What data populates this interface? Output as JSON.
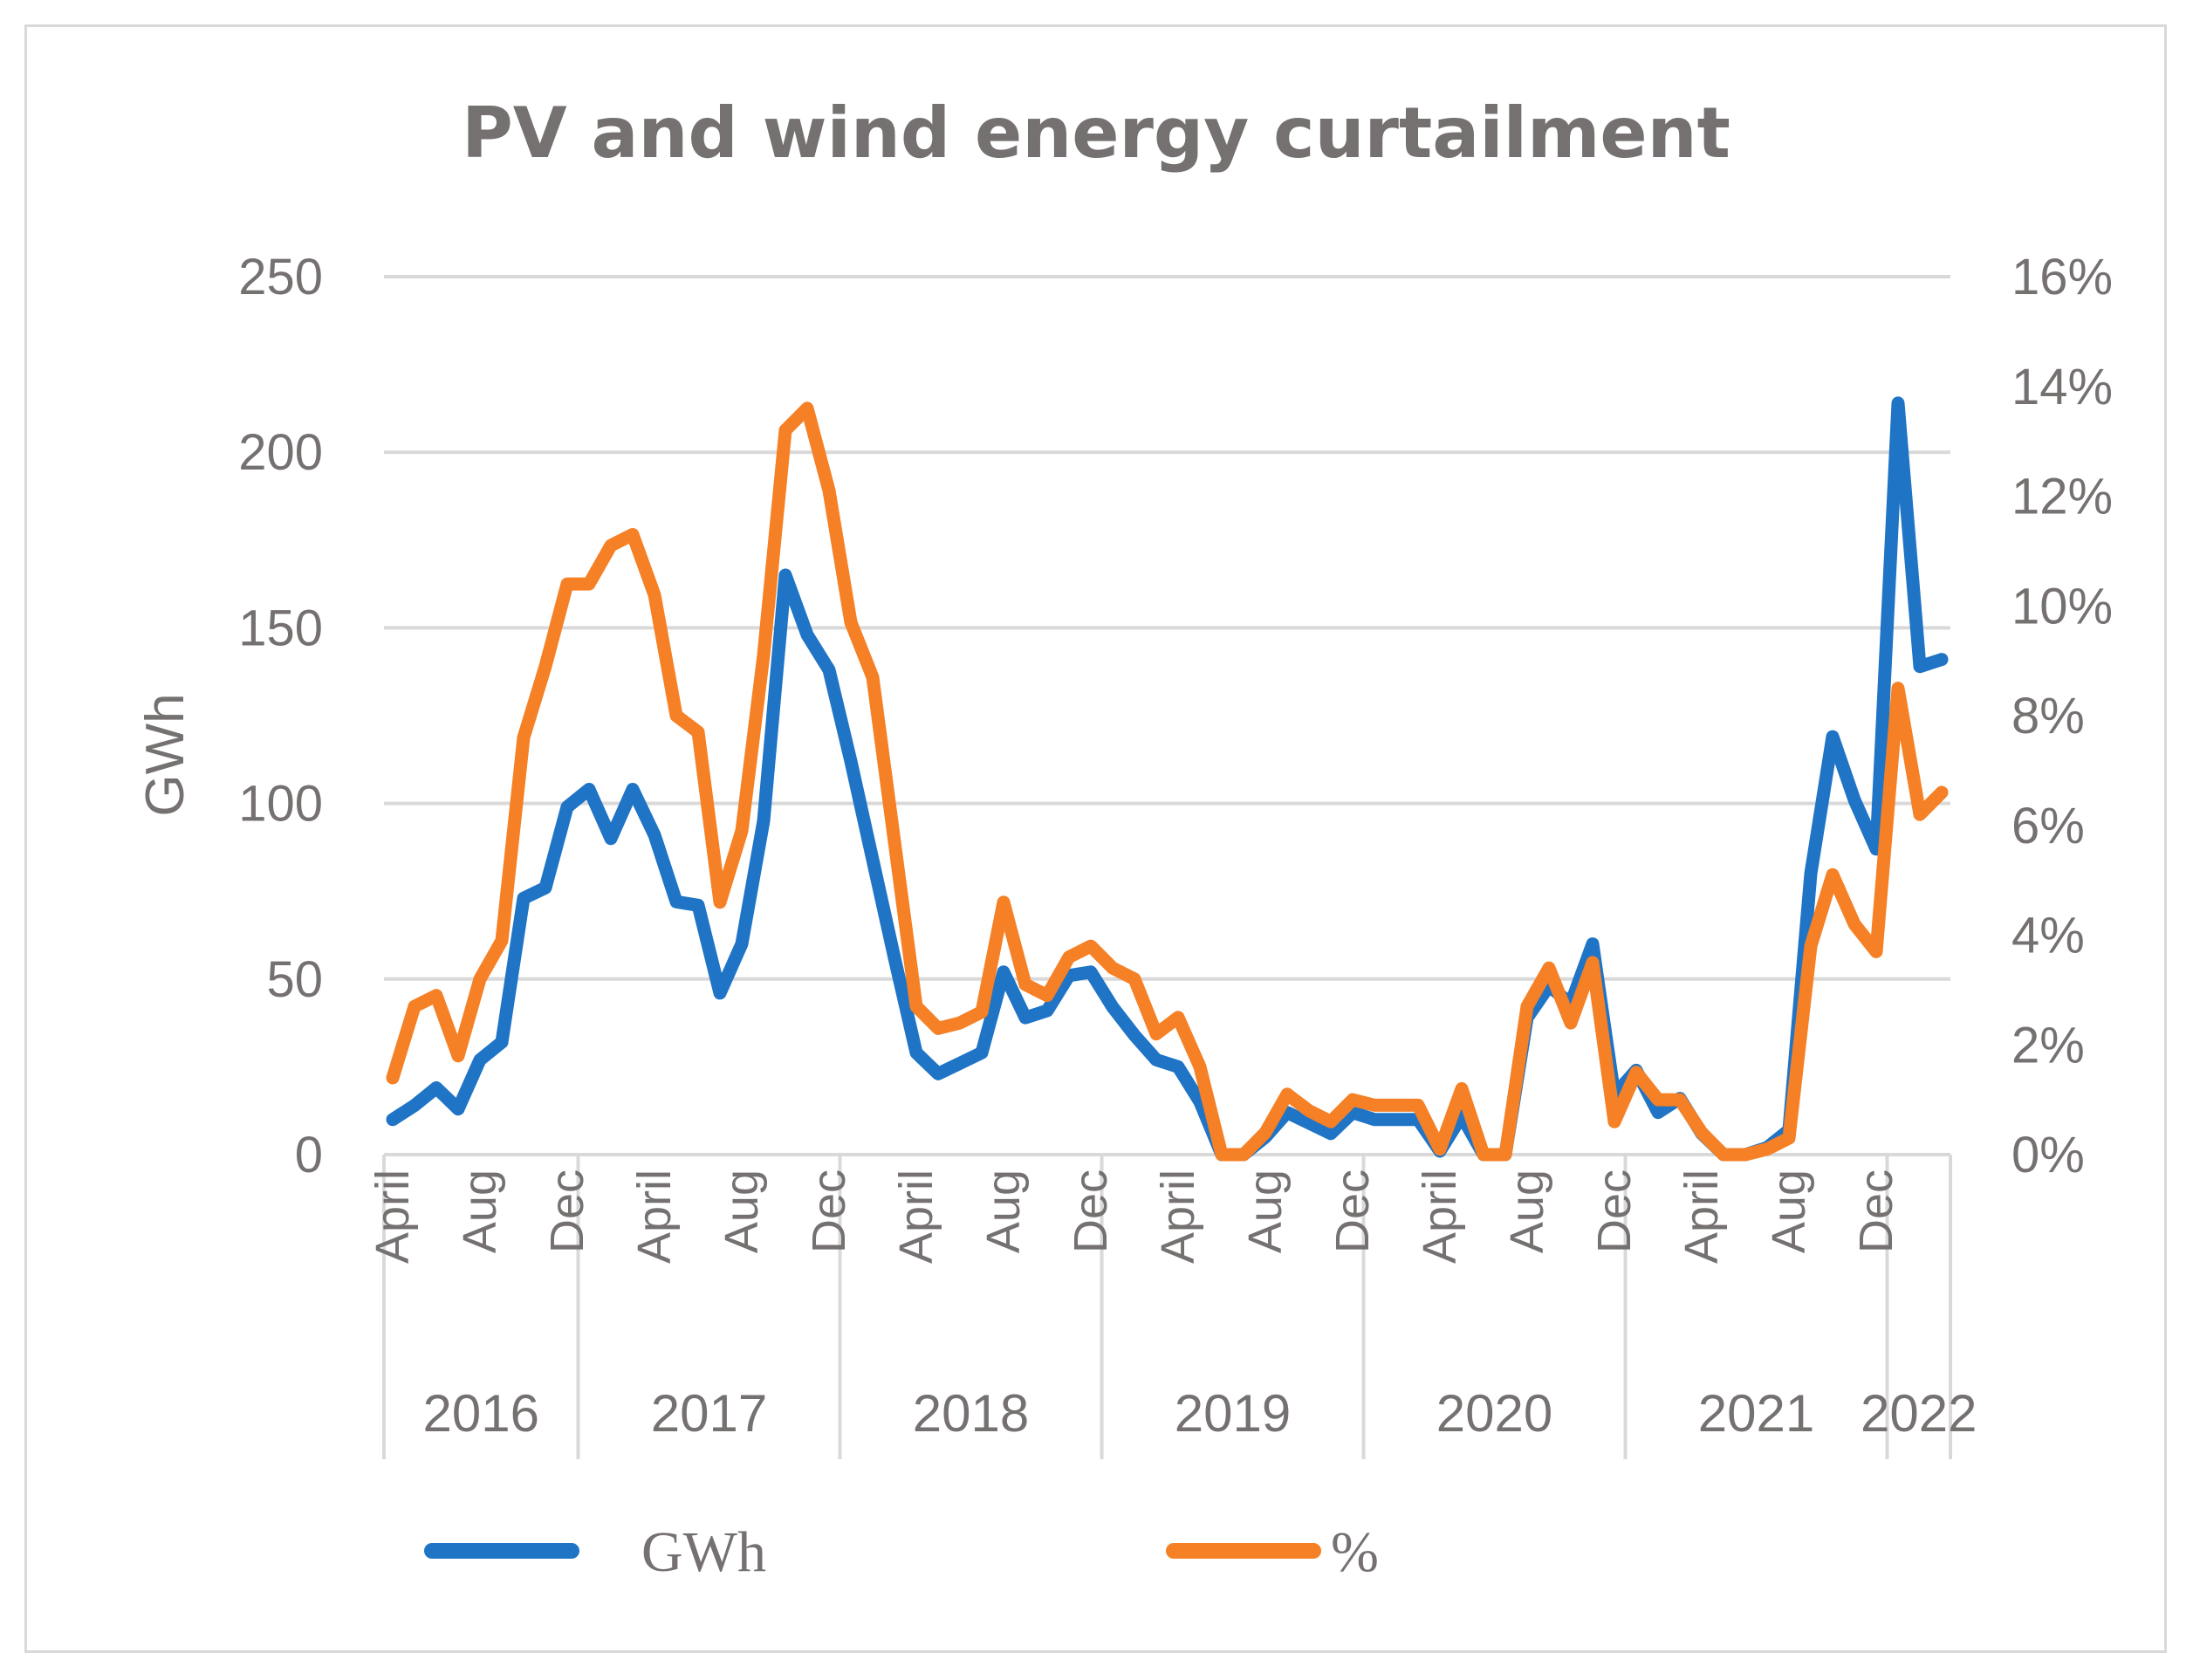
{
  "chart_data": {
    "type": "line",
    "title": "PV and wind energy curtailment",
    "ylabel": "GWh",
    "ylim": [
      0,
      250
    ],
    "y2lim": [
      0,
      0.16
    ],
    "yticks": [
      "0",
      "50",
      "100",
      "150",
      "200",
      "250"
    ],
    "y2ticks": [
      "0%",
      "2%",
      "4%",
      "6%",
      "8%",
      "10%",
      "12%",
      "14%",
      "16%"
    ],
    "month_labels": [
      {
        "label": "April",
        "index": 0
      },
      {
        "label": "Aug",
        "index": 4
      },
      {
        "label": "Dec",
        "index": 8
      },
      {
        "label": "April",
        "index": 12
      },
      {
        "label": "Aug",
        "index": 16
      },
      {
        "label": "Dec",
        "index": 20
      },
      {
        "label": "April",
        "index": 24
      },
      {
        "label": "Aug",
        "index": 28
      },
      {
        "label": "Dec",
        "index": 32
      },
      {
        "label": "April",
        "index": 36
      },
      {
        "label": "Aug",
        "index": 40
      },
      {
        "label": "Dec",
        "index": 44
      },
      {
        "label": "April",
        "index": 48
      },
      {
        "label": "Aug",
        "index": 52
      },
      {
        "label": "Dec",
        "index": 56
      },
      {
        "label": "April",
        "index": 60
      },
      {
        "label": "Aug",
        "index": 64
      },
      {
        "label": "Dec",
        "index": 68
      }
    ],
    "year_groups": [
      {
        "label": "2016",
        "start": 0,
        "end": 9
      },
      {
        "label": "2017",
        "start": 9,
        "end": 21
      },
      {
        "label": "2018",
        "start": 21,
        "end": 33
      },
      {
        "label": "2019",
        "start": 33,
        "end": 45
      },
      {
        "label": "2020",
        "start": 45,
        "end": 57
      },
      {
        "label": "2021",
        "start": 57,
        "end": 69
      },
      {
        "label": "2022",
        "start": 69,
        "end": 72
      }
    ],
    "series": [
      {
        "name": "GWh",
        "axis": "left",
        "color": "#1f74c6",
        "values": [
          10,
          14,
          19,
          13,
          27,
          32,
          73,
          76,
          99,
          104,
          90,
          104,
          91,
          72,
          71,
          46,
          60,
          95,
          165,
          148,
          138,
          112,
          84,
          56,
          29,
          23,
          26,
          29,
          52,
          39,
          41,
          51,
          52,
          42,
          34,
          27,
          25,
          15,
          0,
          0,
          5,
          12,
          9,
          6,
          12,
          10,
          10,
          10,
          1,
          11,
          0,
          0,
          39,
          48,
          43,
          60,
          17,
          24,
          12,
          16,
          6,
          0,
          0,
          2,
          7,
          80,
          119,
          101,
          87,
          214,
          139,
          141
        ]
      },
      {
        "name": "%",
        "axis": "right",
        "color": "#f58025",
        "values": [
          0.014,
          0.027,
          0.029,
          0.018,
          0.032,
          0.039,
          0.076,
          0.089,
          0.104,
          0.104,
          0.111,
          0.113,
          0.102,
          0.08,
          0.077,
          0.046,
          0.059,
          0.091,
          0.132,
          0.136,
          0.121,
          0.097,
          0.087,
          0.057,
          0.027,
          0.023,
          0.024,
          0.026,
          0.046,
          0.031,
          0.029,
          0.036,
          0.038,
          0.034,
          0.032,
          0.022,
          0.025,
          0.016,
          0.0,
          0.0,
          0.004,
          0.011,
          0.008,
          0.006,
          0.01,
          0.009,
          0.009,
          0.009,
          0.001,
          0.012,
          0.0,
          0.0,
          0.027,
          0.034,
          0.024,
          0.035,
          0.006,
          0.015,
          0.01,
          0.01,
          0.004,
          0.0,
          0.0,
          0.001,
          0.003,
          0.038,
          0.051,
          0.042,
          0.037,
          0.085,
          0.062,
          0.066
        ]
      }
    ],
    "legend": [
      {
        "label": "GWh",
        "color": "#1f74c6"
      },
      {
        "label": "%",
        "color": "#f58025"
      }
    ]
  }
}
